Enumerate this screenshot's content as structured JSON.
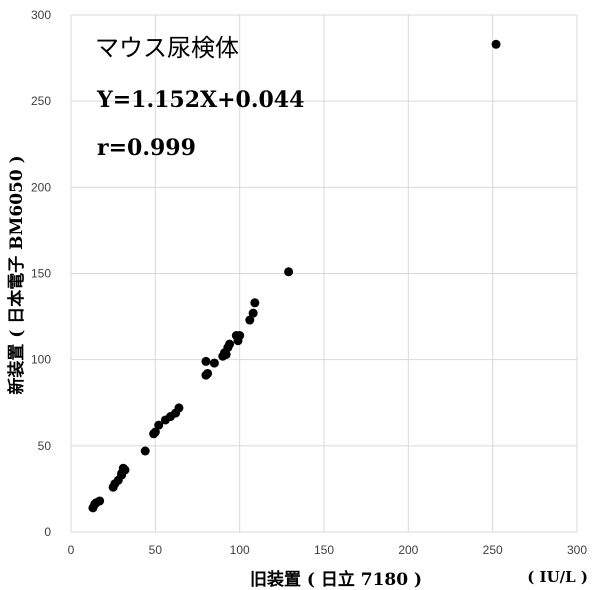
{
  "chart_data": {
    "type": "scatter",
    "title": "マウス尿検体",
    "annotations": [
      "Y=1.152X+0.044",
      "r=0.999"
    ],
    "xlabel": "旧装置 ( 日立 7180 )",
    "ylabel": "新装置 ( 日本電子 BM6050 )",
    "unit": "( IU/L )",
    "xlim": [
      0,
      300
    ],
    "ylim": [
      0,
      300
    ],
    "xticks": [
      0,
      50,
      100,
      150,
      200,
      250,
      300
    ],
    "yticks": [
      0,
      50,
      100,
      150,
      200,
      250,
      300
    ],
    "grid": true,
    "point_color": "#000000",
    "grid_color": "#d9d9d9",
    "points": [
      [
        13,
        14
      ],
      [
        14,
        16
      ],
      [
        15,
        17
      ],
      [
        17,
        18
      ],
      [
        25,
        26
      ],
      [
        26,
        28
      ],
      [
        28,
        30
      ],
      [
        30,
        33
      ],
      [
        30,
        34
      ],
      [
        31,
        37
      ],
      [
        32,
        36
      ],
      [
        44,
        47
      ],
      [
        49,
        57
      ],
      [
        50,
        58
      ],
      [
        52,
        62
      ],
      [
        56,
        65
      ],
      [
        59,
        67
      ],
      [
        62,
        69
      ],
      [
        64,
        72
      ],
      [
        80,
        91
      ],
      [
        80,
        99
      ],
      [
        81,
        92
      ],
      [
        85,
        98
      ],
      [
        90,
        102
      ],
      [
        91,
        104
      ],
      [
        92,
        103
      ],
      [
        93,
        107
      ],
      [
        94,
        109
      ],
      [
        98,
        114
      ],
      [
        99,
        111
      ],
      [
        100,
        114
      ],
      [
        106,
        123
      ],
      [
        108,
        127
      ],
      [
        109,
        133
      ],
      [
        129,
        151
      ],
      [
        252,
        283
      ]
    ]
  }
}
